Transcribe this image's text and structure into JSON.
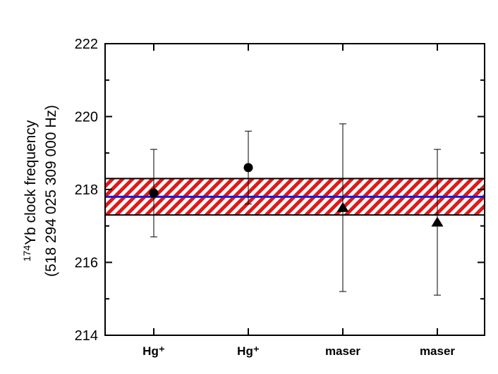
{
  "chart_data": {
    "type": "scatter",
    "title": "",
    "ylabel": {
      "line1_superscript": "174",
      "line1_text": "Yb clock frequency",
      "line2_text": "(518 294 025 309 000 Hz)"
    },
    "xlabel": "",
    "ylim": [
      214,
      222
    ],
    "yticks": [
      "214",
      "216",
      "218",
      "220",
      "222"
    ],
    "ytick_values": [
      214,
      216,
      218,
      220,
      222
    ],
    "categories": [
      "Hg⁺",
      "Hg⁺",
      "maser",
      "maser"
    ],
    "points": [
      {
        "category": "Hg⁺",
        "marker": "circle",
        "y": 217.9,
        "y_low": 216.7,
        "y_high": 219.1
      },
      {
        "category": "Hg⁺",
        "marker": "circle",
        "y": 218.6,
        "y_low": 217.6,
        "y_high": 219.6
      },
      {
        "category": "maser",
        "marker": "triangle",
        "y": 217.5,
        "y_low": 215.2,
        "y_high": 219.8
      },
      {
        "category": "maser",
        "marker": "triangle",
        "y": 217.1,
        "y_low": 215.1,
        "y_high": 219.1
      }
    ],
    "mean_line": {
      "y": 217.8,
      "color": "#1a1adc"
    },
    "uncertainty_band": {
      "y_low": 217.3,
      "y_high": 218.3,
      "color": "#e01818"
    },
    "grid": false,
    "legend": "none"
  }
}
